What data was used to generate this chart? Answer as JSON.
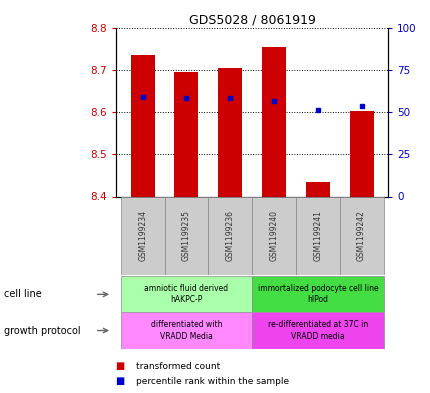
{
  "title": "GDS5028 / 8061919",
  "samples": [
    "GSM1199234",
    "GSM1199235",
    "GSM1199236",
    "GSM1199240",
    "GSM1199241",
    "GSM1199242"
  ],
  "bar_bottoms": [
    8.4,
    8.4,
    8.4,
    8.4,
    8.4,
    8.4
  ],
  "bar_tops": [
    8.735,
    8.695,
    8.705,
    8.755,
    8.435,
    8.602
  ],
  "percentile_values": [
    8.635,
    8.632,
    8.632,
    8.625,
    8.605,
    8.615
  ],
  "ylim_left": [
    8.4,
    8.8
  ],
  "ylim_right": [
    0,
    100
  ],
  "yticks_left": [
    8.4,
    8.5,
    8.6,
    8.7,
    8.8
  ],
  "yticks_right": [
    0,
    25,
    50,
    75,
    100
  ],
  "bar_color": "#cc0000",
  "percentile_color": "#0000cc",
  "cell_line_groups": [
    {
      "label": "amniotic fluid derived\nhAKPC-P",
      "start": 0,
      "end": 3,
      "color": "#aaffaa"
    },
    {
      "label": "immortalized podocyte cell line\nhIPod",
      "start": 3,
      "end": 6,
      "color": "#44dd44"
    }
  ],
  "growth_protocol_groups": [
    {
      "label": "differentiated with\nVRADD Media",
      "start": 0,
      "end": 3,
      "color": "#ff88ff"
    },
    {
      "label": "re-differentiated at 37C in\nVRADD media",
      "start": 3,
      "end": 6,
      "color": "#ee44ee"
    }
  ],
  "cell_line_label": "cell line",
  "growth_protocol_label": "growth protocol",
  "legend_red_label": "transformed count",
  "legend_blue_label": "percentile rank within the sample",
  "background_color": "#ffffff",
  "tick_label_color_left": "#cc0000",
  "tick_label_color_right": "#0000cc",
  "bar_width": 0.55,
  "sample_label_color": "#333333",
  "grid_color": "#000000",
  "spine_color": "#000000"
}
